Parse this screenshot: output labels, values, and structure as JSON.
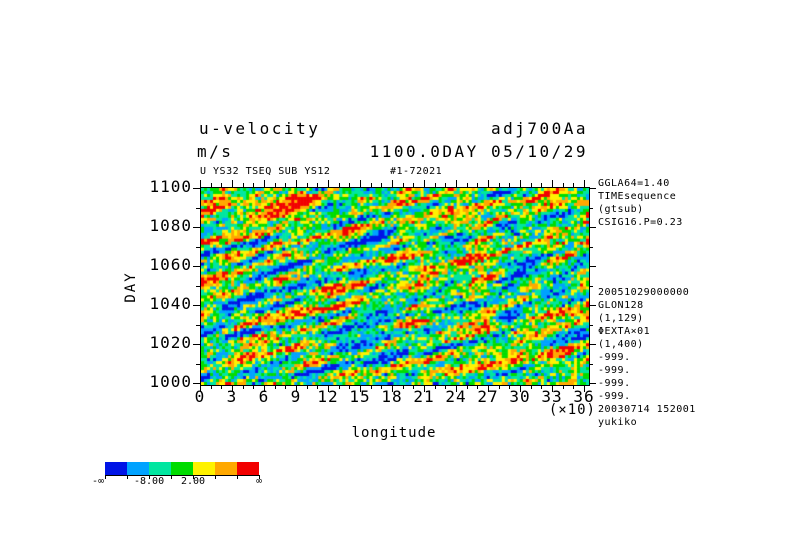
{
  "header": {
    "title": "u-velocity",
    "run_id": "adj700Aa",
    "units": "m/s",
    "time_stamp": "1100.0DAY 05/10/29",
    "meta_left": "U YS32 TSEQ SUB YS12",
    "meta_right": "#1-72021"
  },
  "axes": {
    "x": {
      "label": "longitude",
      "scale_note": "(×10)",
      "min": 0,
      "max": 36,
      "minor_step": 1,
      "major_step": 3,
      "tick_labels": [
        0,
        3,
        6,
        9,
        12,
        15,
        18,
        21,
        24,
        27,
        30,
        33,
        36
      ]
    },
    "y": {
      "label": "DAY",
      "min": 1000,
      "max": 1100,
      "minor_step": 10,
      "major_step": 20,
      "tick_labels": [
        1100,
        1080,
        1060,
        1040,
        1020,
        1000
      ]
    }
  },
  "right_annotations": {
    "group1": [
      "GGLA64=1.40",
      "TIMEsequence",
      "(gtsub)",
      "CSIG16.P=0.23"
    ],
    "group2": [
      "20051029000000",
      "GLON128",
      "(1,129)",
      "ΦEXTA×01",
      "(1,400)",
      "-999.",
      "-999.",
      "-999.",
      "-999.",
      "20030714 152001",
      "yukiko"
    ]
  },
  "colorbar": {
    "colors": [
      "#0014e6",
      "#00a2ff",
      "#00e6a0",
      "#00dc00",
      "#fff200",
      "#ffa800",
      "#f20000"
    ],
    "label_left_end": "-∞",
    "label_right_end": "∞",
    "boundary_labels": [
      {
        "text": "-8.00",
        "boundary_index": 2
      },
      {
        "text": "2.00",
        "boundary_index": 4
      }
    ]
  },
  "chart_data": {
    "type": "heatmap",
    "title": "u-velocity",
    "units": "m/s",
    "frame_time": "1100.0DAY",
    "date": "05/10/29",
    "experiment": "adj700Aa",
    "source_line": "U YS32 TSEQ SUB YS12",
    "record": "#1-72021",
    "xlabel": "longitude",
    "x_scale_factor": "(×10)",
    "xlim": [
      0,
      36.4
    ],
    "x_ticks": [
      0,
      3,
      6,
      9,
      12,
      15,
      18,
      21,
      24,
      27,
      30,
      33,
      36
    ],
    "ylabel": "DAY",
    "ylim": [
      999,
      1100
    ],
    "y_ticks": [
      1000,
      1020,
      1040,
      1060,
      1080,
      1100
    ],
    "color_levels": [
      -13,
      -8,
      -3,
      2,
      7,
      12
    ],
    "labeled_levels": [
      -8.0,
      2.0
    ],
    "palette": [
      "#0014e6",
      "#00a2ff",
      "#00e6a0",
      "#00dc00",
      "#fff200",
      "#ffa800",
      "#f20000"
    ],
    "field_note": "Noisy Hovmoller u-velocity field (day vs longitude) with elongated streaks tilted up toward the right; individual cell values are not numerically readable from the pixels.",
    "field_gen": {
      "nx": 129,
      "ny": 66,
      "seed": 20051029,
      "smooth_passes": 4,
      "mix_large": 1.0,
      "mix_small": 0.7,
      "wave_amp1": 0.55,
      "wave_amp2": 0.35,
      "quantiles": [
        0.07,
        0.24,
        0.45,
        0.63,
        0.8,
        0.93
      ]
    }
  }
}
